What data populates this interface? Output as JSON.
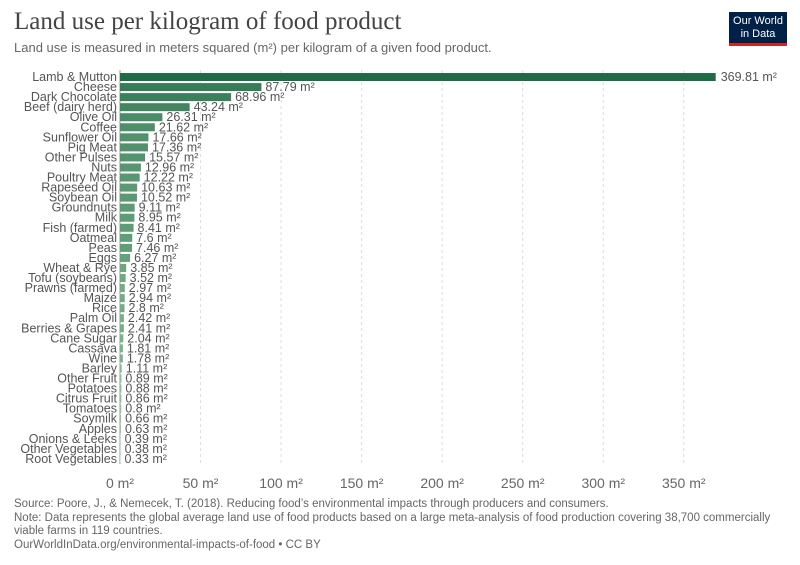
{
  "header": {
    "title": "Land use per kilogram of food product",
    "subtitle": "Land use is measured in meters squared (m²) per kilogram of a given food product."
  },
  "logo": {
    "line1": "Our World",
    "line2": "in Data",
    "bg_color": "#002147",
    "accent_color": "#ce261e"
  },
  "footer": {
    "source": "Source: Poore, J., & Nemecek, T. (2018). Reducing food’s environmental impacts through producers and consumers.",
    "note": "Note: Data represents the global average land use of food products based on a large meta-analysis of food production covering 38,700 commercially viable farms in 119 countries.",
    "credit": "OurWorldInData.org/environmental-impacts-of-food • CC BY"
  },
  "chart_data": {
    "type": "bar",
    "orientation": "horizontal",
    "title": "Land use per kilogram of food product",
    "unit": "m²",
    "xlim": [
      0,
      370
    ],
    "xticks": [
      0,
      50,
      100,
      150,
      200,
      250,
      300,
      350
    ],
    "xtick_labels": [
      "0 m²",
      "50 m²",
      "100 m²",
      "150 m²",
      "200 m²",
      "250 m²",
      "300 m²",
      "350 m²"
    ],
    "grid": true,
    "categories": [
      "Lamb & Mutton",
      "Cheese",
      "Dark Chocolate",
      "Beef (dairy herd)",
      "Olive Oil",
      "Coffee",
      "Sunflower Oil",
      "Pig Meat",
      "Other Pulses",
      "Nuts",
      "Poultry Meat",
      "Rapeseed Oil",
      "Soybean Oil",
      "Groundnuts",
      "Milk",
      "Fish (farmed)",
      "Oatmeal",
      "Peas",
      "Eggs",
      "Wheat & Rye",
      "Tofu (soybeans)",
      "Prawns (farmed)",
      "Maize",
      "Rice",
      "Palm Oil",
      "Berries & Grapes",
      "Cane Sugar",
      "Cassava",
      "Wine",
      "Barley",
      "Other Fruit",
      "Potatoes",
      "Citrus Fruit",
      "Tomatoes",
      "Soymilk",
      "Apples",
      "Onions & Leeks",
      "Other Vegetables",
      "Root Vegetables"
    ],
    "values": [
      369.81,
      87.79,
      68.96,
      43.24,
      26.31,
      21.62,
      17.66,
      17.36,
      15.57,
      12.96,
      12.22,
      10.63,
      10.52,
      9.11,
      8.95,
      8.41,
      7.6,
      7.46,
      6.27,
      3.85,
      3.52,
      2.97,
      2.94,
      2.8,
      2.42,
      2.41,
      2.04,
      1.81,
      1.78,
      1.11,
      0.89,
      0.88,
      0.86,
      0.8,
      0.66,
      0.63,
      0.39,
      0.38,
      0.33
    ],
    "value_labels": [
      "369.81 m²",
      "87.79 m²",
      "68.96 m²",
      "43.24 m²",
      "26.31 m²",
      "21.62 m²",
      "17.66 m²",
      "17.36 m²",
      "15.57 m²",
      "12.96 m²",
      "12.22 m²",
      "10.63 m²",
      "10.52 m²",
      "9.11 m²",
      "8.95 m²",
      "8.41 m²",
      "7.6 m²",
      "7.46 m²",
      "6.27 m²",
      "3.85 m²",
      "3.52 m²",
      "2.97 m²",
      "2.94 m²",
      "2.8 m²",
      "2.42 m²",
      "2.41 m²",
      "2.04 m²",
      "1.81 m²",
      "1.78 m²",
      "1.11 m²",
      "0.89 m²",
      "0.88 m²",
      "0.86 m²",
      "0.8 m²",
      "0.66 m²",
      "0.63 m²",
      "0.39 m²",
      "0.38 m²",
      "0.33 m²"
    ],
    "colors": {
      "high": "#1f6b45",
      "low": "#a8d5b0"
    }
  }
}
